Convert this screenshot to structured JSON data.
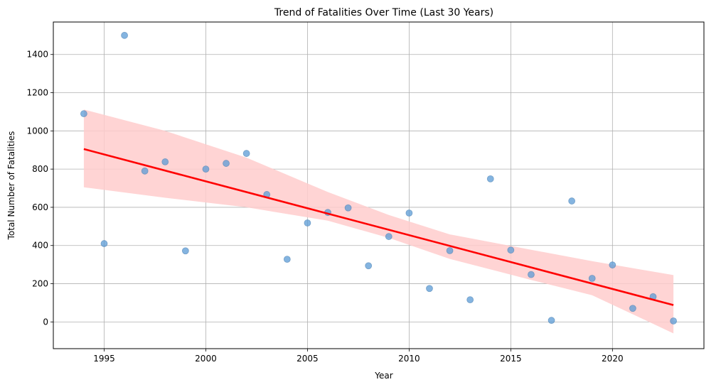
{
  "chart_data": {
    "type": "scatter",
    "title": "Trend of Fatalities Over Time (Last 30 Years)",
    "xlabel": "Year",
    "ylabel": "Total Number of Fatalities",
    "xlim": [
      1992.5,
      2024.5
    ],
    "ylim": [
      -140,
      1570
    ],
    "xticks": [
      1995,
      2000,
      2005,
      2010,
      2015,
      2020
    ],
    "yticks": [
      0,
      200,
      400,
      600,
      800,
      1000,
      1200,
      1400
    ],
    "grid": true,
    "point_color": "#5b9bd5",
    "line_color": "#ff0000",
    "band_color": "#ffcccc",
    "points": [
      {
        "x": 1994,
        "y": 1090
      },
      {
        "x": 1995,
        "y": 410
      },
      {
        "x": 1996,
        "y": 1500
      },
      {
        "x": 1997,
        "y": 790
      },
      {
        "x": 1998,
        "y": 838
      },
      {
        "x": 1999,
        "y": 372
      },
      {
        "x": 2000,
        "y": 800
      },
      {
        "x": 2001,
        "y": 830
      },
      {
        "x": 2002,
        "y": 882
      },
      {
        "x": 2003,
        "y": 667
      },
      {
        "x": 2004,
        "y": 328
      },
      {
        "x": 2005,
        "y": 518
      },
      {
        "x": 2006,
        "y": 573
      },
      {
        "x": 2007,
        "y": 597
      },
      {
        "x": 2008,
        "y": 294
      },
      {
        "x": 2009,
        "y": 447
      },
      {
        "x": 2010,
        "y": 570
      },
      {
        "x": 2011,
        "y": 175
      },
      {
        "x": 2012,
        "y": 373
      },
      {
        "x": 2013,
        "y": 116
      },
      {
        "x": 2014,
        "y": 749
      },
      {
        "x": 2015,
        "y": 376
      },
      {
        "x": 2016,
        "y": 248
      },
      {
        "x": 2017,
        "y": 8
      },
      {
        "x": 2018,
        "y": 633
      },
      {
        "x": 2019,
        "y": 228
      },
      {
        "x": 2020,
        "y": 298
      },
      {
        "x": 2021,
        "y": 71
      },
      {
        "x": 2022,
        "y": 132
      },
      {
        "x": 2023,
        "y": 5
      }
    ],
    "regression_line": {
      "x": [
        1994,
        2023
      ],
      "y": [
        905,
        88
      ]
    },
    "confidence_band": {
      "x": [
        1994,
        1998,
        2002,
        2006,
        2009,
        2012,
        2016,
        2019,
        2023
      ],
      "upper": [
        1112,
        1000,
        860,
        680,
        560,
        458,
        378,
        318,
        245
      ],
      "lower": [
        705,
        650,
        600,
        530,
        440,
        330,
        220,
        140,
        -60
      ]
    }
  }
}
